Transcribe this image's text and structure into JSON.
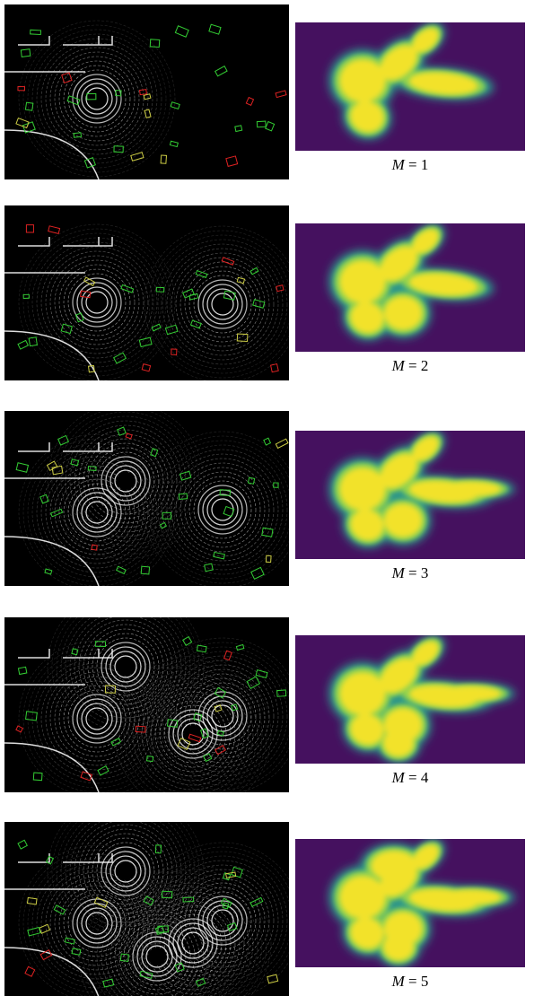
{
  "rows": [
    {
      "caption": "M = 1"
    },
    {
      "caption": "M = 2"
    },
    {
      "caption": "M = 3"
    },
    {
      "caption": "M = 4"
    },
    {
      "caption": "M = 5"
    }
  ]
}
